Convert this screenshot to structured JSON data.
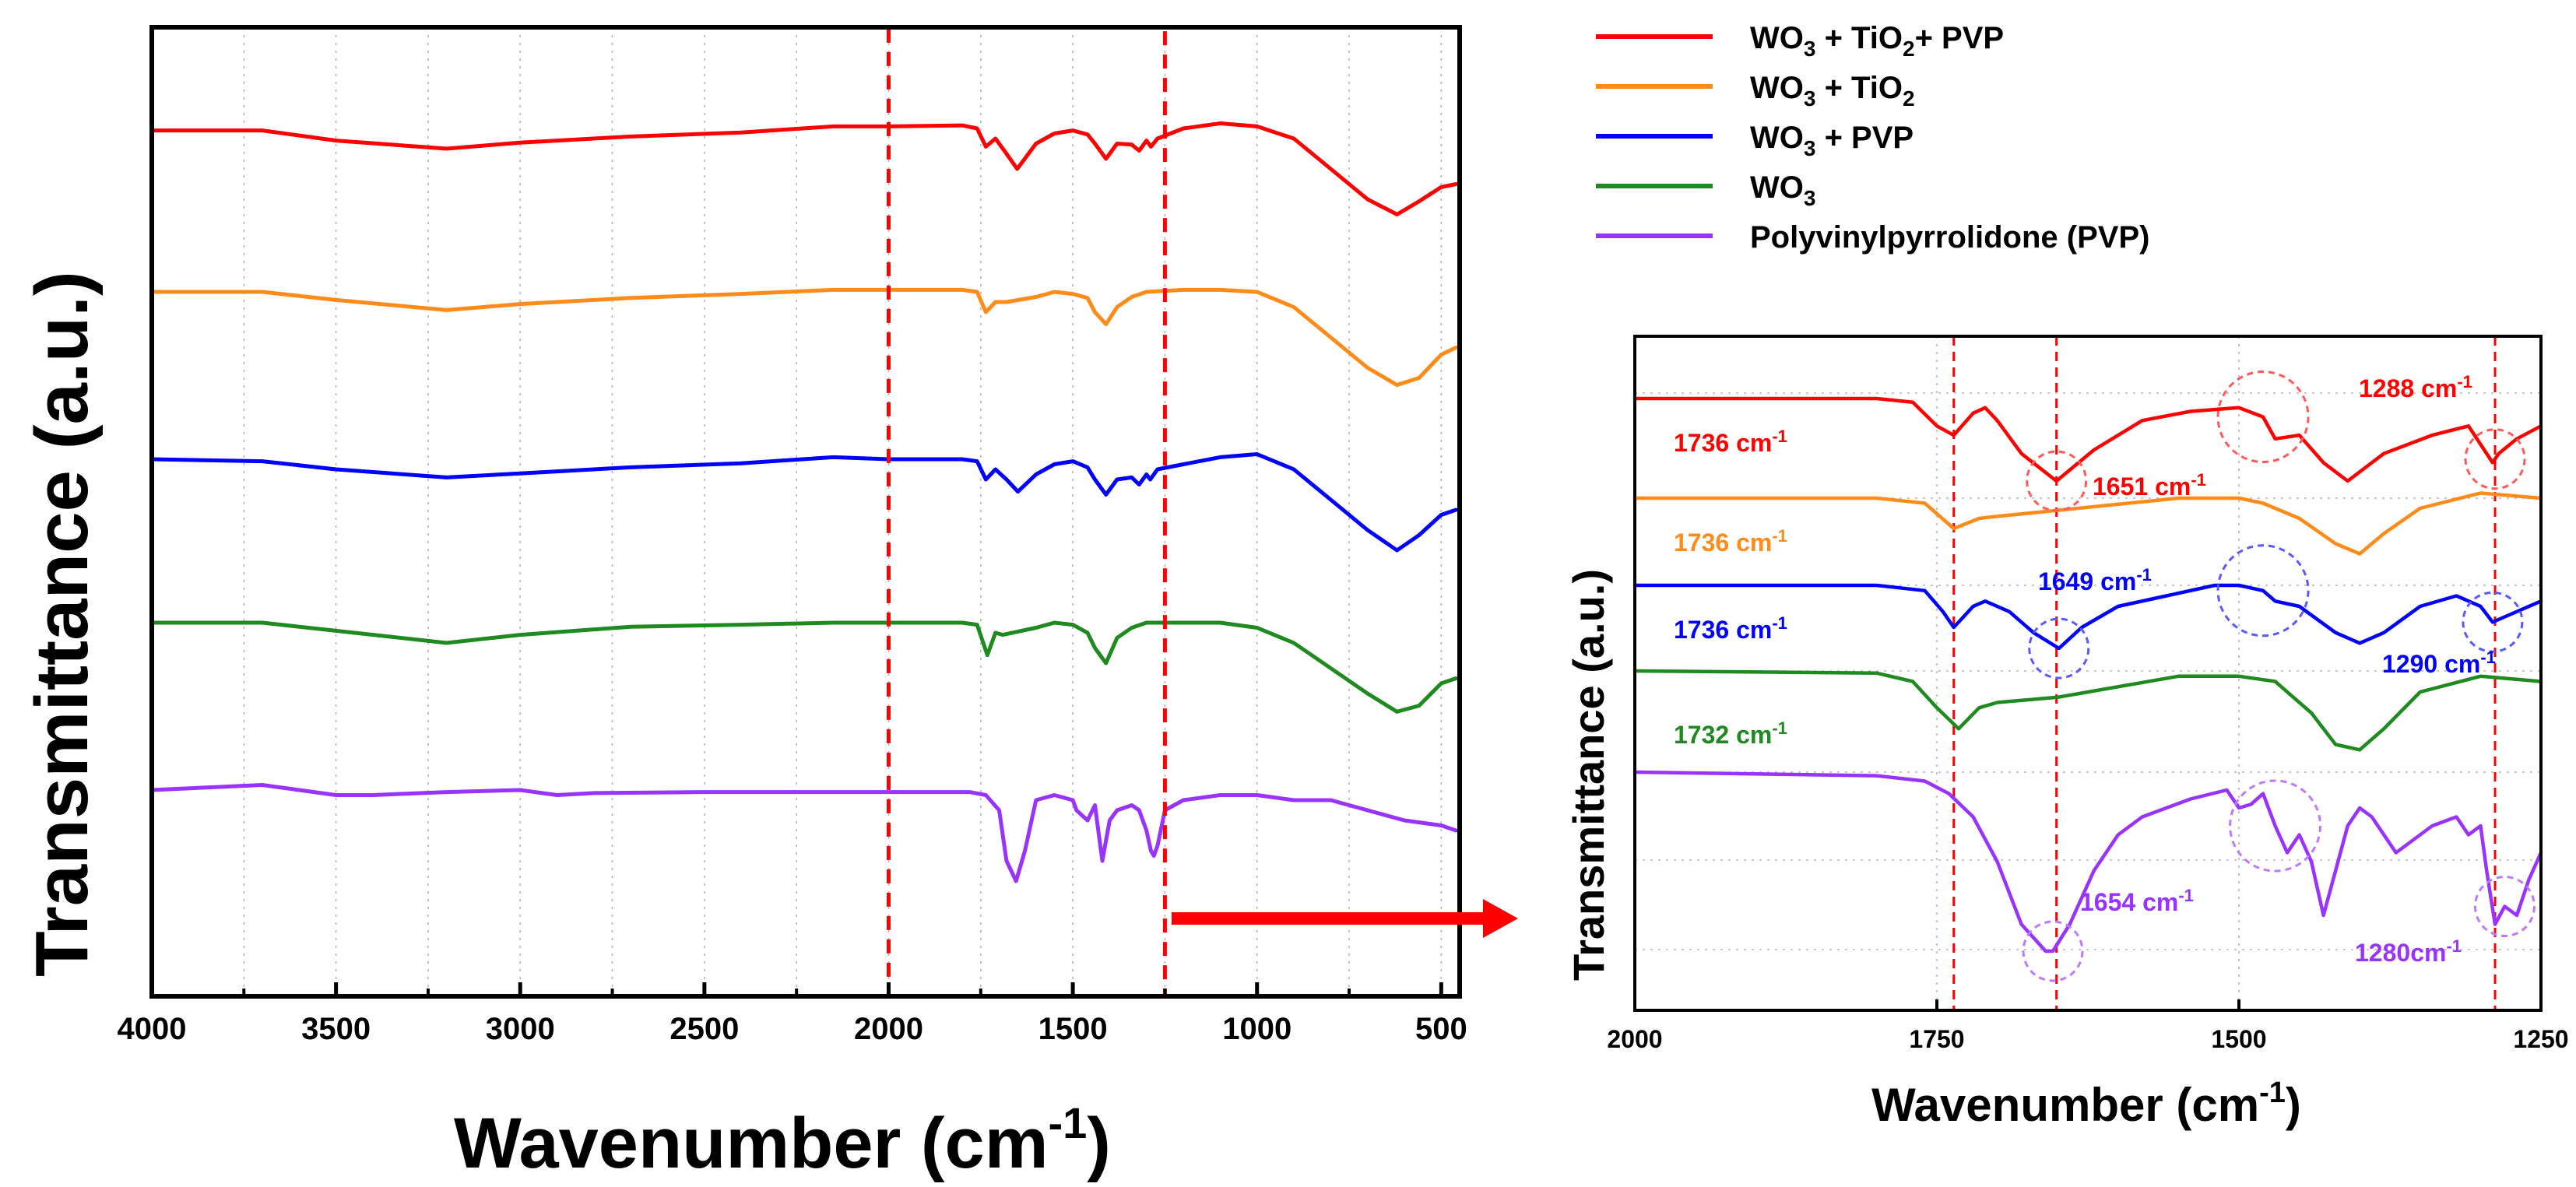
{
  "chart_data": [
    {
      "type": "line",
      "panel": "main",
      "title": "",
      "xlabel_main": "Wavenumber (cm",
      "xlabel_exp": "-1",
      "xlabel_close": ")",
      "ylabel": "Transmittance (a.u.)",
      "xlim": [
        4000,
        450
      ],
      "x_inverted": true,
      "x_ticks": [
        4000,
        3500,
        3000,
        2500,
        2000,
        1500,
        1000,
        500
      ],
      "grid": true,
      "legend_position": "top-right",
      "legend": [
        {
          "name_parts": [
            "WO",
            "3",
            " + TiO",
            "2",
            "+ PVP"
          ],
          "color": "#ff0000"
        },
        {
          "name_parts": [
            "WO",
            "3",
            " + TiO",
            "2"
          ],
          "color": "#ff8c1a"
        },
        {
          "name_parts": [
            "WO",
            "3",
            " + PVP"
          ],
          "color": "#0000ff"
        },
        {
          "name_parts": [
            "WO",
            "3"
          ],
          "color": "#1f8a1f"
        },
        {
          "name_parts": [
            "Polyvinylpyrrolidone (PVP)"
          ],
          "color": "#9933ff"
        }
      ],
      "highlight_region": [
        2000,
        1250
      ],
      "series": [
        {
          "name": "WO3 + TiO2+ PVP",
          "color": "#ff0000",
          "offset": 4,
          "x": [
            4000,
            3700,
            3500,
            3200,
            3000,
            2700,
            2400,
            2150,
            2000,
            1800,
            1760,
            1736,
            1710,
            1680,
            1651,
            1600,
            1550,
            1500,
            1460,
            1440,
            1410,
            1380,
            1340,
            1320,
            1300,
            1288,
            1270,
            1200,
            1100,
            1000,
            900,
            800,
            700,
            620,
            560,
            500,
            460
          ],
          "y": [
            -0.02,
            -0.02,
            -0.12,
            -0.2,
            -0.14,
            -0.08,
            -0.04,
            0.02,
            0.02,
            0.03,
            0.0,
            -0.18,
            -0.1,
            -0.25,
            -0.4,
            -0.15,
            -0.05,
            -0.02,
            -0.06,
            -0.15,
            -0.3,
            -0.15,
            -0.16,
            -0.22,
            -0.12,
            -0.18,
            -0.1,
            0.0,
            0.05,
            0.02,
            -0.1,
            -0.4,
            -0.7,
            -0.85,
            -0.72,
            -0.58,
            -0.55
          ]
        },
        {
          "name": "WO3 + TiO2",
          "color": "#ff8c1a",
          "offset": 3,
          "x": [
            4000,
            3700,
            3500,
            3200,
            3000,
            2700,
            2400,
            2150,
            2000,
            1800,
            1760,
            1736,
            1710,
            1680,
            1600,
            1550,
            1500,
            1460,
            1440,
            1410,
            1380,
            1340,
            1300,
            1200,
            1100,
            1000,
            900,
            800,
            700,
            620,
            560,
            500,
            460
          ],
          "y": [
            0.0,
            0.0,
            -0.08,
            -0.18,
            -0.12,
            -0.06,
            -0.02,
            0.02,
            0.02,
            0.02,
            0.0,
            -0.2,
            -0.1,
            -0.1,
            -0.05,
            0.0,
            -0.02,
            -0.06,
            -0.2,
            -0.32,
            -0.15,
            -0.05,
            0.0,
            0.02,
            0.02,
            0.0,
            -0.15,
            -0.45,
            -0.75,
            -0.92,
            -0.85,
            -0.62,
            -0.55
          ]
        },
        {
          "name": "WO3 + PVP",
          "color": "#0000ff",
          "offset": 2,
          "x": [
            4000,
            3700,
            3500,
            3200,
            3000,
            2700,
            2400,
            2150,
            2000,
            1800,
            1760,
            1736,
            1710,
            1680,
            1649,
            1600,
            1550,
            1500,
            1460,
            1440,
            1410,
            1380,
            1340,
            1320,
            1300,
            1290,
            1270,
            1200,
            1100,
            1000,
            900,
            800,
            700,
            620,
            560,
            500,
            460
          ],
          "y": [
            0.0,
            -0.02,
            -0.1,
            -0.18,
            -0.14,
            -0.08,
            -0.04,
            0.02,
            0.0,
            0.0,
            -0.02,
            -0.2,
            -0.1,
            -0.2,
            -0.32,
            -0.15,
            -0.05,
            -0.02,
            -0.08,
            -0.2,
            -0.35,
            -0.2,
            -0.18,
            -0.25,
            -0.15,
            -0.2,
            -0.1,
            -0.05,
            0.02,
            0.05,
            -0.1,
            -0.4,
            -0.7,
            -0.9,
            -0.75,
            -0.55,
            -0.5
          ]
        },
        {
          "name": "WO3",
          "color": "#1f8a1f",
          "offset": 1,
          "x": [
            4000,
            3700,
            3500,
            3200,
            3000,
            2700,
            2400,
            2150,
            2000,
            1800,
            1760,
            1732,
            1710,
            1690,
            1600,
            1550,
            1500,
            1460,
            1440,
            1410,
            1380,
            1340,
            1300,
            1200,
            1100,
            1000,
            900,
            800,
            700,
            620,
            560,
            500,
            460
          ],
          "y": [
            0.0,
            0.0,
            -0.08,
            -0.2,
            -0.12,
            -0.04,
            -0.02,
            0.0,
            0.0,
            0.0,
            -0.02,
            -0.32,
            -0.1,
            -0.12,
            -0.05,
            0.0,
            -0.02,
            -0.1,
            -0.25,
            -0.4,
            -0.15,
            -0.05,
            0.0,
            0.0,
            0.0,
            -0.05,
            -0.2,
            -0.45,
            -0.7,
            -0.88,
            -0.82,
            -0.6,
            -0.55
          ]
        },
        {
          "name": "Polyvinylpyrrolidone (PVP)",
          "color": "#9933ff",
          "offset": 0,
          "x": [
            4000,
            3700,
            3600,
            3500,
            3400,
            3200,
            3000,
            2900,
            2800,
            2500,
            2000,
            1780,
            1736,
            1700,
            1680,
            1654,
            1630,
            1600,
            1550,
            1500,
            1490,
            1460,
            1440,
            1420,
            1400,
            1380,
            1340,
            1320,
            1300,
            1288,
            1280,
            1270,
            1250,
            1200,
            1100,
            1000,
            900,
            800,
            700,
            600,
            500,
            460
          ],
          "y": [
            0.0,
            0.05,
            0.0,
            -0.05,
            -0.05,
            -0.02,
            0.0,
            -0.05,
            -0.03,
            -0.02,
            -0.02,
            -0.02,
            -0.05,
            -0.2,
            -0.7,
            -0.9,
            -0.6,
            -0.1,
            -0.05,
            -0.1,
            -0.2,
            -0.3,
            -0.15,
            -0.7,
            -0.3,
            -0.2,
            -0.15,
            -0.2,
            -0.4,
            -0.6,
            -0.65,
            -0.55,
            -0.2,
            -0.1,
            -0.05,
            -0.05,
            -0.1,
            -0.1,
            -0.2,
            -0.3,
            -0.35,
            -0.4
          ]
        }
      ]
    },
    {
      "type": "line",
      "panel": "inset",
      "title": "",
      "xlabel_main": "Wavenumber (cm",
      "xlabel_exp": "-1",
      "xlabel_close": ")",
      "ylabel": "Transmittance (a.u.)",
      "xlim": [
        2000,
        1250
      ],
      "x_inverted": true,
      "x_ticks": [
        2000,
        1750,
        1500,
        1250
      ],
      "grid": true,
      "reference_lines": [
        1736,
        1651,
        1288
      ],
      "annotations": [
        {
          "text": "1736 cm",
          "sup": "-1",
          "color": "#ff0000"
        },
        {
          "text": "1651 cm",
          "sup": "-1",
          "color": "#ff0000"
        },
        {
          "text": "1288 cm",
          "sup": "-1",
          "color": "#ff0000"
        },
        {
          "text": "1736 cm",
          "sup": "-1",
          "color": "#ff8c1a"
        },
        {
          "text": "1649 cm",
          "sup": "-1",
          "color": "#0000ff"
        },
        {
          "text": "1736 cm",
          "sup": "-1",
          "color": "#0000ff"
        },
        {
          "text": "1290 cm",
          "sup": "-1",
          "color": "#0000ff"
        },
        {
          "text": "1732 cm",
          "sup": "-1",
          "color": "#1f8a1f"
        },
        {
          "text": "1654 cm",
          "sup": "-1",
          "color": "#9933ff"
        },
        {
          "text": "1280cm",
          "sup": "-1",
          "color": "#9933ff"
        }
      ],
      "circled_bands": [
        {
          "series": "WO3 + TiO2+ PVP",
          "x": 1651
        },
        {
          "series": "WO3 + TiO2+ PVP",
          "x": 1480
        },
        {
          "series": "WO3 + TiO2+ PVP",
          "x": 1288
        },
        {
          "series": "WO3 + PVP",
          "x": 1649
        },
        {
          "series": "WO3 + PVP",
          "x": 1480
        },
        {
          "series": "WO3 + PVP",
          "x": 1290
        },
        {
          "series": "Polyvinylpyrrolidone (PVP)",
          "x": 1654
        },
        {
          "series": "Polyvinylpyrrolidone (PVP)",
          "x": 1470
        },
        {
          "series": "Polyvinylpyrrolidone (PVP)",
          "x": 1280
        }
      ],
      "series": [
        {
          "name": "WO3 + TiO2+ PVP",
          "color": "#ff0000",
          "x": [
            2000,
            1800,
            1770,
            1750,
            1736,
            1720,
            1710,
            1700,
            1680,
            1651,
            1620,
            1580,
            1540,
            1500,
            1480,
            1470,
            1450,
            1430,
            1410,
            1380,
            1340,
            1310,
            1300,
            1290,
            1285,
            1270,
            1250
          ],
          "y": [
            1.0,
            1.0,
            0.98,
            0.85,
            0.8,
            0.92,
            0.95,
            0.88,
            0.7,
            0.55,
            0.72,
            0.88,
            0.93,
            0.95,
            0.9,
            0.78,
            0.8,
            0.65,
            0.55,
            0.7,
            0.8,
            0.85,
            0.75,
            0.65,
            0.7,
            0.78,
            0.85
          ]
        },
        {
          "name": "WO3 + TiO2",
          "color": "#ff8c1a",
          "x": [
            2000,
            1800,
            1760,
            1736,
            1715,
            1700,
            1650,
            1550,
            1500,
            1480,
            1450,
            1420,
            1400,
            1380,
            1350,
            1300,
            1250
          ],
          "y": [
            0.0,
            0.0,
            -0.05,
            -0.3,
            -0.2,
            -0.18,
            -0.12,
            0.0,
            0.0,
            -0.05,
            -0.2,
            -0.45,
            -0.55,
            -0.35,
            -0.1,
            0.05,
            0.0
          ]
        },
        {
          "name": "WO3 + PVP",
          "color": "#0000ff",
          "x": [
            2000,
            1800,
            1760,
            1745,
            1736,
            1720,
            1710,
            1690,
            1670,
            1649,
            1630,
            1600,
            1560,
            1520,
            1500,
            1480,
            1470,
            1450,
            1420,
            1400,
            1380,
            1350,
            1320,
            1300,
            1290,
            1280,
            1250
          ],
          "y": [
            0.0,
            0.0,
            -0.05,
            -0.25,
            -0.4,
            -0.2,
            -0.15,
            -0.25,
            -0.45,
            -0.6,
            -0.4,
            -0.2,
            -0.1,
            0.0,
            0.0,
            -0.05,
            -0.15,
            -0.2,
            -0.45,
            -0.55,
            -0.45,
            -0.2,
            -0.1,
            -0.2,
            -0.35,
            -0.3,
            -0.15
          ]
        },
        {
          "name": "WO3",
          "color": "#1f8a1f",
          "x": [
            2000,
            1800,
            1770,
            1750,
            1732,
            1715,
            1700,
            1650,
            1550,
            1500,
            1470,
            1440,
            1420,
            1400,
            1380,
            1350,
            1300,
            1250
          ],
          "y": [
            0.0,
            -0.02,
            -0.1,
            -0.35,
            -0.55,
            -0.35,
            -0.3,
            -0.25,
            -0.05,
            -0.05,
            -0.1,
            -0.4,
            -0.7,
            -0.75,
            -0.55,
            -0.2,
            -0.05,
            -0.1
          ]
        },
        {
          "name": "Polyvinylpyrrolidone (PVP)",
          "color": "#9933ff",
          "x": [
            2000,
            1800,
            1760,
            1740,
            1720,
            1700,
            1680,
            1660,
            1654,
            1640,
            1620,
            1600,
            1580,
            1540,
            1510,
            1500,
            1490,
            1480,
            1470,
            1460,
            1450,
            1440,
            1430,
            1420,
            1410,
            1400,
            1390,
            1370,
            1340,
            1320,
            1310,
            1300,
            1295,
            1288,
            1280,
            1270,
            1260,
            1250
          ],
          "y": [
            0.0,
            -0.02,
            -0.05,
            -0.12,
            -0.25,
            -0.5,
            -0.85,
            -1.0,
            -1.0,
            -0.85,
            -0.55,
            -0.35,
            -0.25,
            -0.15,
            -0.1,
            -0.2,
            -0.18,
            -0.12,
            -0.3,
            -0.45,
            -0.35,
            -0.5,
            -0.8,
            -0.55,
            -0.3,
            -0.2,
            -0.25,
            -0.45,
            -0.3,
            -0.25,
            -0.35,
            -0.3,
            -0.55,
            -0.85,
            -0.75,
            -0.8,
            -0.6,
            -0.45
          ]
        }
      ]
    }
  ]
}
